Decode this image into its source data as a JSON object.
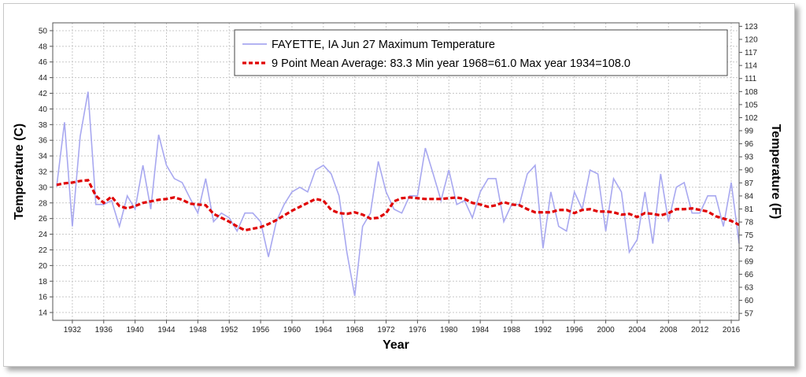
{
  "chart_data": {
    "type": "line",
    "legend": {
      "series1": "FAYETTE, IA  Jun 27  Maximum Temperature",
      "series2": "9 Point Mean  Average: 83.3  Min year 1968=61.0  Max year 1934=108.0",
      "placement": "top-right"
    },
    "xlabel": "Year",
    "ylabel_left": "Temperature (C)",
    "ylabel_right": "Temperature (F)",
    "xlim": [
      1929.5,
      2017
    ],
    "ylim_c": [
      13,
      51
    ],
    "x_ticks": [
      "1932",
      "1936",
      "1940",
      "1944",
      "1948",
      "1952",
      "1956",
      "1960",
      "1964",
      "1968",
      "1972",
      "1976",
      "1980",
      "1984",
      "1988",
      "1992",
      "1996",
      "2000",
      "2004",
      "2008",
      "2012",
      "2016"
    ],
    "y_ticks_c": [
      "14",
      "16",
      "18",
      "20",
      "22",
      "24",
      "26",
      "28",
      "30",
      "32",
      "34",
      "36",
      "38",
      "40",
      "42",
      "44",
      "46",
      "48",
      "50"
    ],
    "y_ticks_f": [
      "57",
      "60",
      "63",
      "66",
      "69",
      "72",
      "75",
      "78",
      "81",
      "84",
      "87",
      "90",
      "93",
      "96",
      "99",
      "102",
      "105",
      "108",
      "111",
      "114",
      "117",
      "120",
      "123"
    ],
    "grid": true,
    "colors": {
      "raw": "#a8a8f0",
      "mean": "#e00000",
      "grid": "#c8c8c8"
    },
    "series": [
      {
        "name": "FAYETTE, IA  Jun 27  Maximum Temperature",
        "x_start": 1930,
        "values_c": [
          30.1,
          38.3,
          25.0,
          36.5,
          42.2,
          27.8,
          27.8,
          28.3,
          25.0,
          28.9,
          27.2,
          32.8,
          27.2,
          36.7,
          32.8,
          31.1,
          30.6,
          28.6,
          26.7,
          31.1,
          25.6,
          26.7,
          26.1,
          24.4,
          26.7,
          26.7,
          25.6,
          21.1,
          25.6,
          27.8,
          29.4,
          30.0,
          29.4,
          32.2,
          32.8,
          31.7,
          28.9,
          21.7,
          16.1,
          25.0,
          26.7,
          33.3,
          29.4,
          27.2,
          26.7,
          28.9,
          28.9,
          35.0,
          31.7,
          28.3,
          32.2,
          27.8,
          28.3,
          26.1,
          29.4,
          31.1,
          31.1,
          25.6,
          27.8,
          27.8,
          31.7,
          32.8,
          22.2,
          29.4,
          25.0,
          24.4,
          29.4,
          27.2,
          32.2,
          31.7,
          24.4,
          31.1,
          29.4,
          21.7,
          23.3,
          29.4,
          22.8,
          31.7,
          25.6,
          30.0,
          30.6,
          26.7,
          26.7,
          28.9,
          28.9,
          25.0,
          30.6,
          22.8
        ]
      },
      {
        "name": "9 Point Mean",
        "x_start": 1930,
        "values_c": [
          30.3,
          30.5,
          30.6,
          30.8,
          30.9,
          28.9,
          28.0,
          28.8,
          27.6,
          27.3,
          27.6,
          28.0,
          28.2,
          28.4,
          28.5,
          28.7,
          28.4,
          27.9,
          27.8,
          27.7,
          26.6,
          26.1,
          25.6,
          25.0,
          24.5,
          24.7,
          24.9,
          25.3,
          25.8,
          26.4,
          27.0,
          27.5,
          28.0,
          28.5,
          28.3,
          27.1,
          26.7,
          26.6,
          26.8,
          26.5,
          26.0,
          26.1,
          26.7,
          28.2,
          28.6,
          28.7,
          28.6,
          28.5,
          28.5,
          28.5,
          28.6,
          28.7,
          28.5,
          28.0,
          27.8,
          27.5,
          27.7,
          28.1,
          27.8,
          27.7,
          27.2,
          26.8,
          26.8,
          26.8,
          27.1,
          27.1,
          26.7,
          27.1,
          27.2,
          26.9,
          26.9,
          26.8,
          26.5,
          26.6,
          26.2,
          26.7,
          26.6,
          26.4,
          26.7,
          27.2,
          27.2,
          27.3,
          27.1,
          26.9,
          26.3,
          26.0,
          25.7,
          25.2
        ]
      }
    ]
  }
}
